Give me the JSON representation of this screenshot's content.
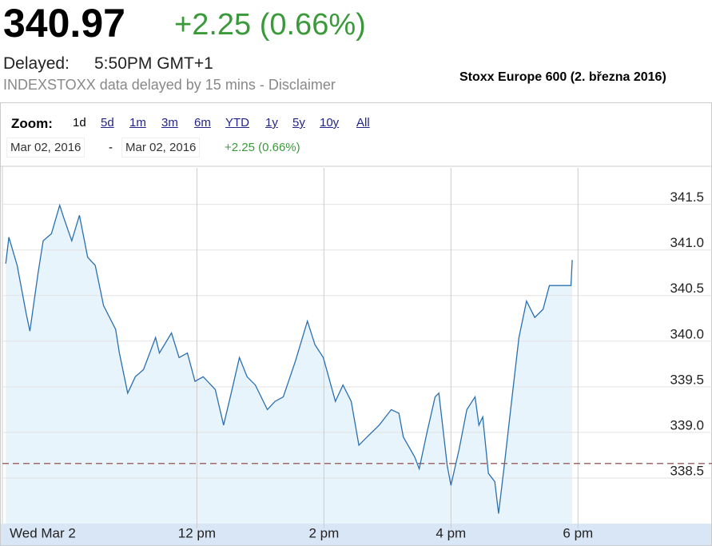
{
  "header": {
    "price": "340.97",
    "change": "+2.25 (0.66%)",
    "delayed_label": "Delayed:",
    "delayed_time": "5:50PM GMT+1",
    "note": "INDEXSTOXX data delayed by 15 mins - Disclaimer",
    "caption": "Stoxx Europe 600 (2. března 2016)"
  },
  "zoom": {
    "label": "Zoom:",
    "options": [
      "1d",
      "5d",
      "1m",
      "3m",
      "6m",
      "YTD",
      "1y",
      "5y",
      "10y",
      "All"
    ]
  },
  "range": {
    "from": "Mar 02, 2016",
    "separator": "-",
    "to": "Mar 02, 2016",
    "change": "+2.25 (0.66%)"
  },
  "chart_data": {
    "type": "line",
    "color": "#2a6fb0",
    "fill": "#e8f4fc",
    "grid": true,
    "reference_line": 338.66,
    "reference_color": "#a06a6a",
    "xlim": [
      8.9,
      20.11
    ],
    "ylim": [
      338.0,
      341.9
    ],
    "xticks": [
      {
        "value": 9,
        "label": "Wed Mar 2"
      },
      {
        "value": 12,
        "label": "12 pm"
      },
      {
        "value": 14,
        "label": "2 pm"
      },
      {
        "value": 16,
        "label": "4 pm"
      },
      {
        "value": 18,
        "label": "6 pm"
      }
    ],
    "yticks": [
      341.5,
      {
        "value": 341,
        "label": "341.0"
      },
      340.5,
      {
        "value": 340,
        "label": "340.0"
      },
      339.5,
      {
        "value": 339,
        "label": "339.0"
      },
      338.5
    ],
    "x": [
      8.99,
      9.04,
      9.17,
      9.31,
      9.37,
      9.5,
      9.58,
      9.71,
      9.84,
      9.9,
      10.03,
      10.15,
      10.28,
      10.4,
      10.53,
      10.72,
      10.78,
      10.91,
      11.03,
      11.16,
      11.35,
      11.41,
      11.6,
      11.72,
      11.85,
      11.97,
      12.1,
      12.29,
      12.42,
      12.54,
      12.67,
      12.79,
      12.92,
      13.11,
      13.23,
      13.36,
      13.55,
      13.74,
      13.86,
      13.99,
      14.18,
      14.3,
      14.43,
      14.55,
      14.68,
      14.87,
      15.06,
      15.18,
      15.25,
      15.43,
      15.5,
      15.62,
      15.75,
      15.81,
      15.94,
      16.0,
      16.13,
      16.25,
      16.38,
      16.44,
      16.5,
      16.59,
      16.69,
      16.75,
      16.84,
      16.94,
      17.07,
      17.19,
      17.32,
      17.45,
      17.55,
      17.89,
      17.91
    ],
    "values": [
      340.85,
      341.14,
      340.83,
      340.31,
      340.11,
      340.75,
      341.1,
      341.18,
      341.49,
      341.36,
      341.1,
      341.38,
      340.92,
      340.83,
      340.39,
      340.13,
      339.87,
      339.43,
      339.61,
      339.69,
      340.04,
      339.87,
      340.09,
      339.82,
      339.87,
      339.56,
      339.61,
      339.47,
      339.08,
      339.43,
      339.82,
      339.61,
      339.52,
      339.25,
      339.34,
      339.39,
      339.78,
      340.22,
      339.96,
      339.82,
      339.34,
      339.52,
      339.34,
      338.86,
      338.95,
      339.08,
      339.25,
      339.21,
      338.95,
      338.73,
      338.6,
      338.99,
      339.39,
      339.43,
      338.64,
      338.42,
      338.82,
      339.25,
      339.39,
      339.08,
      339.17,
      338.55,
      338.46,
      338.11,
      338.64,
      339.25,
      340.04,
      340.44,
      340.26,
      340.35,
      340.61,
      340.61,
      340.89
    ]
  }
}
